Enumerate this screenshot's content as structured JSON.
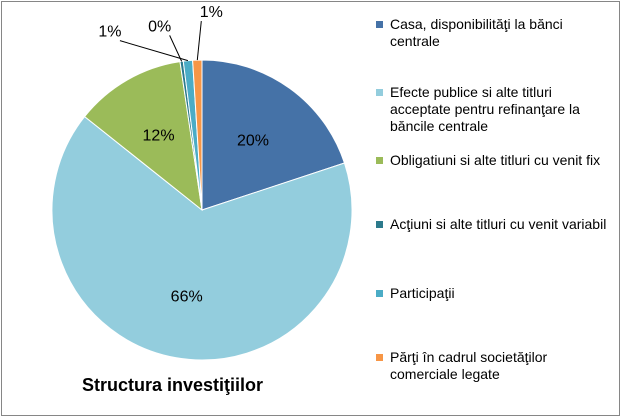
{
  "chart_data": {
    "type": "pie",
    "title": "Structura investiţiilor",
    "categories": [
      "Casa, disponibilităţi la bănci centrale",
      "Efecte publice si alte titluri acceptate pentru refinanţare la băncile centrale",
      "Obligatiuni si alte titluri cu venit fix",
      "Acţiuni si alte titluri cu venit variabil",
      "Participaţii",
      "Părţi în cadrul societăţilor comerciale legate"
    ],
    "values": [
      20,
      66,
      12,
      0,
      1,
      1
    ],
    "data_labels": [
      "20%",
      "66%",
      "12%",
      "0%",
      "1%",
      "1%"
    ],
    "colors": [
      "#4572A7",
      "#93CDDD",
      "#9BBB59",
      "#2C7A8C",
      "#4BACC6",
      "#F79646"
    ],
    "legend_position": "right"
  }
}
